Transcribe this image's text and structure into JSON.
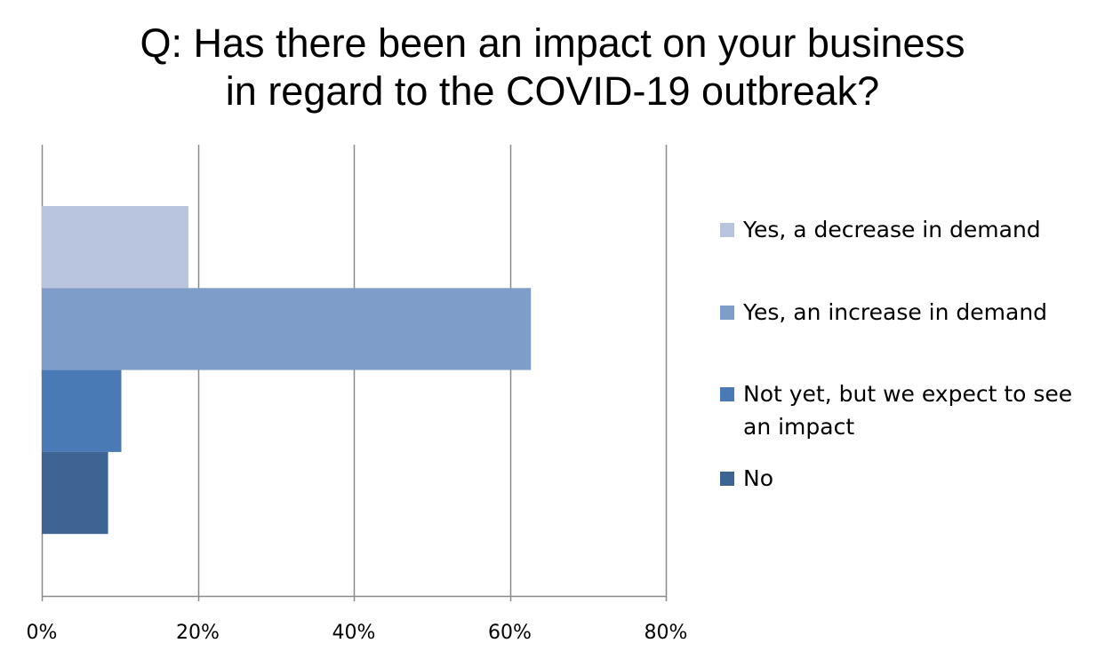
{
  "chart_data": {
    "type": "bar",
    "orientation": "horizontal",
    "title": [
      "Q: Has there been an impact on your business",
      "in regard to the COVID-19 outbreak?"
    ],
    "xlim": [
      0,
      80
    ],
    "x_ticks": [
      "0%",
      "20%",
      "40%",
      "60%",
      "80%"
    ],
    "grid": true,
    "legend_position": "right",
    "series": [
      {
        "name": "Yes, a decrease in demand",
        "values": [
          18.8
        ],
        "color": "#b9c5df"
      },
      {
        "name": "Yes, an increase in demand",
        "values": [
          62.7
        ],
        "color": "#7f9dc9"
      },
      {
        "name": "Not yet, but we expect to see an impact",
        "values": [
          10.2
        ],
        "color": "#4a7ab5"
      },
      {
        "name": "No",
        "values": [
          8.5
        ],
        "color": "#3d6493"
      }
    ]
  }
}
